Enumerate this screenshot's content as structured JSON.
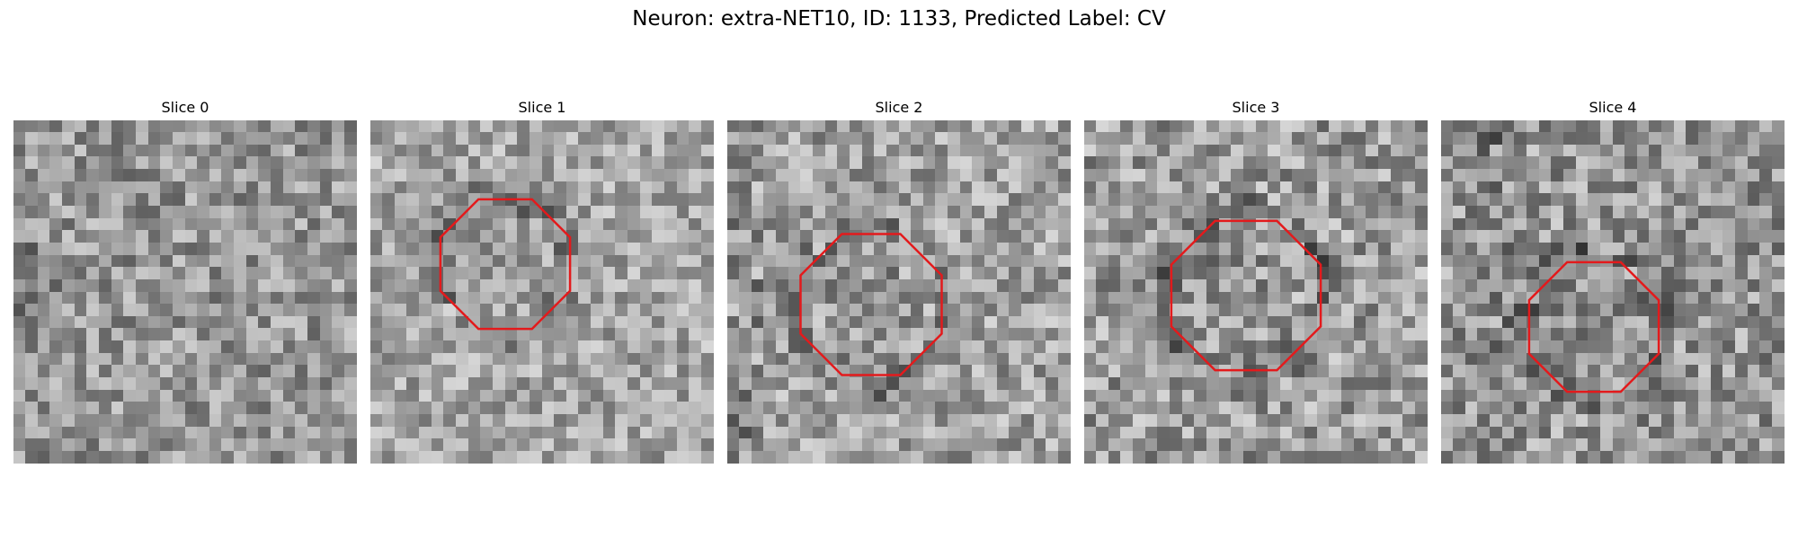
{
  "figure": {
    "title": "Neuron: extra-NET10, ID: 1133, Predicted Label: CV",
    "outline_color": "#e31a1c"
  },
  "panels": [
    {
      "title": "Slice 0",
      "has_outline": false,
      "mean_gray": 150,
      "contrast": 55,
      "seed": 11
    },
    {
      "title": "Slice 1",
      "has_outline": true,
      "mean_gray": 165,
      "contrast": 50,
      "seed": 23
    },
    {
      "title": "Slice 2",
      "has_outline": true,
      "mean_gray": 160,
      "contrast": 55,
      "seed": 37
    },
    {
      "title": "Slice 3",
      "has_outline": true,
      "mean_gray": 155,
      "contrast": 60,
      "seed": 41
    },
    {
      "title": "Slice 4",
      "has_outline": true,
      "mean_gray": 150,
      "contrast": 60,
      "seed": 53
    }
  ]
}
